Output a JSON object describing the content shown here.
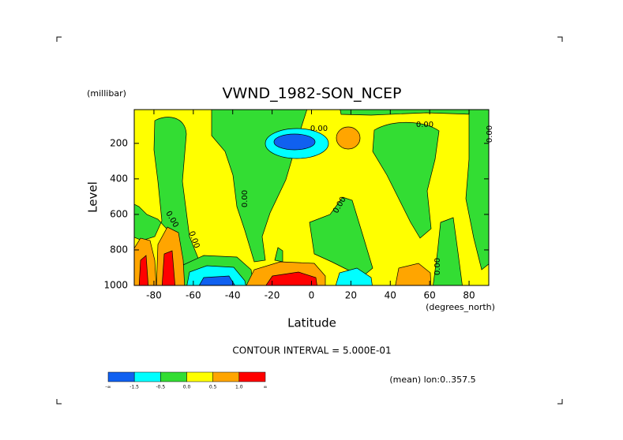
{
  "chart_data": {
    "type": "contour",
    "title": "VWND_1982-SON_NCEP",
    "y_units": "(millibar)",
    "x_units": "(degrees_north)",
    "xlabel": "Latitude",
    "ylabel": "Level",
    "xlim": [
      -90,
      90
    ],
    "xticks": [
      -80,
      -60,
      -40,
      -20,
      0,
      20,
      40,
      60,
      80
    ],
    "ylim": [
      1000,
      10
    ],
    "yticks": [
      200,
      400,
      600,
      800,
      1000
    ],
    "contour_labels": [
      "0.00",
      "0.00",
      "0.00",
      "0.00",
      "0.00",
      "0.00",
      "0.00",
      "0.00"
    ],
    "annotations": [
      "CONTOUR INTERVAL = 5.000E-01",
      "(mean) lon:0..357.5"
    ],
    "colorbar": {
      "labels": [
        "-∞",
        "-1.5",
        "-0.5",
        "0.0",
        "0.5",
        "1.0",
        "∞"
      ],
      "colors": [
        "#1060f0",
        "#00ffff",
        "#33dd33",
        "#ffff00",
        "#ffa500",
        "#ff0000"
      ]
    }
  }
}
